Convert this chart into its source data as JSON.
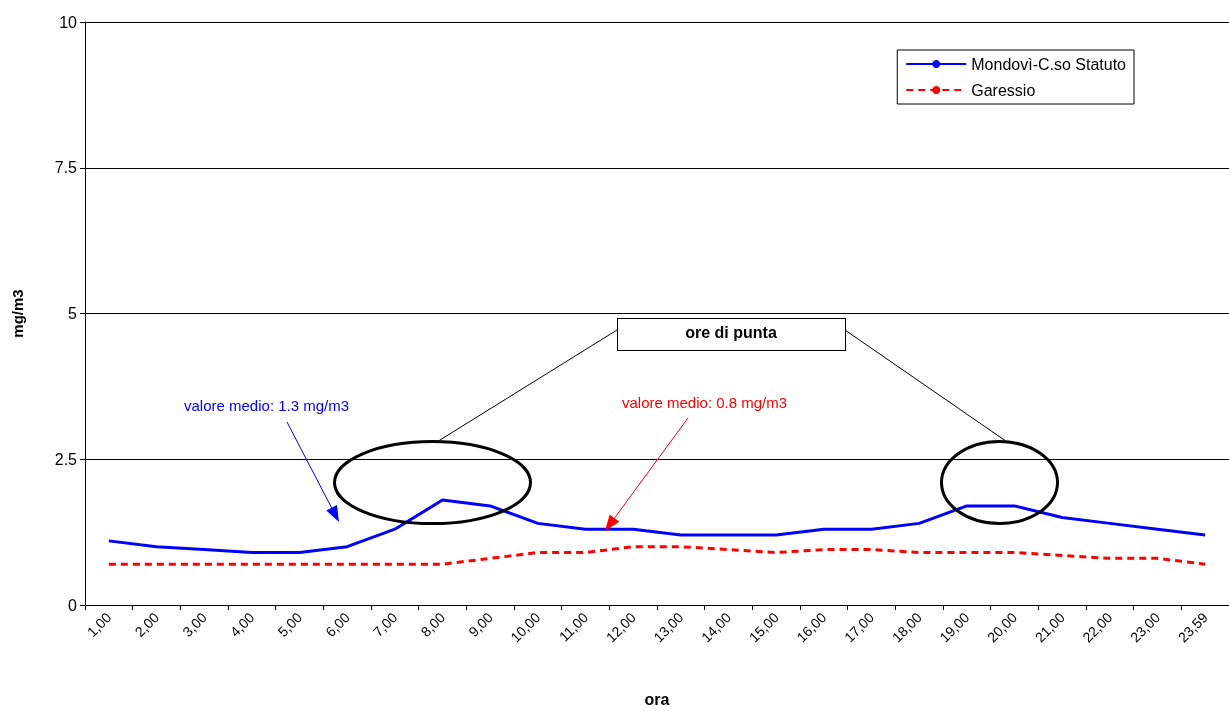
{
  "chart_data": {
    "type": "line",
    "xlabel": "ora",
    "ylabel": "mg/m3",
    "categories": [
      "1,00",
      "2,00",
      "3,00",
      "4,00",
      "5,00",
      "6,00",
      "7,00",
      "8,00",
      "9,00",
      "10,00",
      "11,00",
      "12,00",
      "13,00",
      "14,00",
      "15,00",
      "16,00",
      "17,00",
      "18,00",
      "19,00",
      "20,00",
      "21,00",
      "22,00",
      "23,00",
      "23,59"
    ],
    "series": [
      {
        "name": "Mondovì-C.so Statuto",
        "color": "#0000ff",
        "line_style": "solid",
        "values": [
          1.1,
          1.0,
          0.95,
          0.9,
          0.9,
          1.0,
          1.3,
          1.8,
          1.7,
          1.4,
          1.3,
          1.3,
          1.2,
          1.2,
          1.2,
          1.3,
          1.3,
          1.4,
          1.7,
          1.7,
          1.5,
          1.4,
          1.3,
          1.2
        ]
      },
      {
        "name": "Garessio",
        "color": "#ff0000",
        "line_style": "dashed",
        "values": [
          0.7,
          0.7,
          0.7,
          0.7,
          0.7,
          0.7,
          0.7,
          0.7,
          0.8,
          0.9,
          0.9,
          1.0,
          1.0,
          0.95,
          0.9,
          0.95,
          0.95,
          0.9,
          0.9,
          0.9,
          0.85,
          0.8,
          0.8,
          0.7
        ]
      }
    ],
    "ylim": [
      0,
      10
    ],
    "yticks": [
      0,
      2.5,
      5,
      7.5,
      10
    ],
    "grid": "y",
    "legend": "top right",
    "marker": "none",
    "annotations": [
      "ore  di  punta",
      "valore medio: 1.3 mg/m3",
      "valore medio: 0.8 mg/m3"
    ]
  }
}
